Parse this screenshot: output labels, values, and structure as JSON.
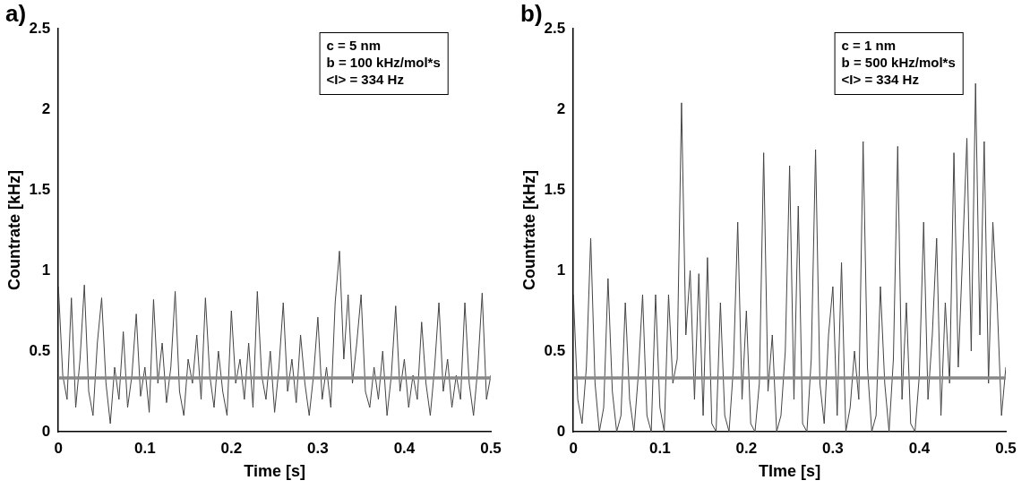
{
  "chart_data": [
    {
      "type": "line",
      "panel": "a)",
      "x_label": "Time [s]",
      "y_label": "Countrate [kHz]",
      "annotations": [
        "c = 5 nm",
        "b = 100 kHz/mol*s",
        "<I> = 334 Hz"
      ],
      "xlim": [
        0,
        0.5
      ],
      "xticks": [
        0,
        0.1,
        0.2,
        0.3,
        0.4,
        0.5
      ],
      "ylim": [
        0,
        2.5
      ],
      "yticks": [
        0,
        0.5,
        1,
        1.5,
        2,
        2.5
      ],
      "grid": false,
      "x": [
        0,
        0.005,
        0.01,
        0.015,
        0.02,
        0.025,
        0.03,
        0.035,
        0.04,
        0.045,
        0.05,
        0.055,
        0.06,
        0.065,
        0.07,
        0.075,
        0.08,
        0.085,
        0.09,
        0.095,
        0.1,
        0.105,
        0.11,
        0.115,
        0.12,
        0.125,
        0.13,
        0.135,
        0.14,
        0.145,
        0.15,
        0.155,
        0.16,
        0.165,
        0.17,
        0.175,
        0.18,
        0.185,
        0.19,
        0.195,
        0.2,
        0.205,
        0.21,
        0.215,
        0.22,
        0.225,
        0.23,
        0.235,
        0.24,
        0.245,
        0.25,
        0.255,
        0.26,
        0.265,
        0.27,
        0.275,
        0.28,
        0.285,
        0.29,
        0.295,
        0.3,
        0.305,
        0.31,
        0.315,
        0.32,
        0.325,
        0.33,
        0.335,
        0.34,
        0.345,
        0.35,
        0.355,
        0.36,
        0.365,
        0.37,
        0.375,
        0.38,
        0.385,
        0.39,
        0.395,
        0.4,
        0.405,
        0.41,
        0.415,
        0.42,
        0.425,
        0.43,
        0.435,
        0.44,
        0.445,
        0.45,
        0.455,
        0.46,
        0.465,
        0.47,
        0.475,
        0.48,
        0.485,
        0.49,
        0.495,
        0.5
      ],
      "series": [
        {
          "color": "#444444",
          "values": [
            0.9,
            0.35,
            0.2,
            0.83,
            0.15,
            0.45,
            0.91,
            0.25,
            0.1,
            0.55,
            0.83,
            0.3,
            0.05,
            0.4,
            0.2,
            0.62,
            0.15,
            0.35,
            0.73,
            0.22,
            0.4,
            0.12,
            0.82,
            0.3,
            0.55,
            0.18,
            0.4,
            0.87,
            0.25,
            0.1,
            0.45,
            0.3,
            0.6,
            0.2,
            0.83,
            0.35,
            0.15,
            0.5,
            0.25,
            0.1,
            0.75,
            0.3,
            0.45,
            0.2,
            0.55,
            0.15,
            0.87,
            0.35,
            0.2,
            0.5,
            0.12,
            0.4,
            0.8,
            0.25,
            0.45,
            0.18,
            0.6,
            0.3,
            0.1,
            0.35,
            0.71,
            0.2,
            0.4,
            0.15,
            0.8,
            1.12,
            0.45,
            0.85,
            0.3,
            0.55,
            0.85,
            0.25,
            0.15,
            0.4,
            0.2,
            0.5,
            0.1,
            0.35,
            0.78,
            0.25,
            0.45,
            0.15,
            0.35,
            0.2,
            0.68,
            0.3,
            0.1,
            0.4,
            0.8,
            0.25,
            0.45,
            0.15,
            0.35,
            0.2,
            0.8,
            0.3,
            0.1,
            0.4,
            0.86,
            0.2,
            0.35
          ]
        },
        {
          "color": "#888888",
          "x": [
            0,
            0.5
          ],
          "values": [
            0.334,
            0.334
          ]
        }
      ]
    },
    {
      "type": "line",
      "panel": "b)",
      "x_label": "TIme [s]",
      "y_label": "Countrate [kHz]",
      "annotations": [
        "c = 1 nm",
        "b = 500 kHz/mol*s",
        "<I> = 334 Hz"
      ],
      "xlim": [
        0,
        0.5
      ],
      "xticks": [
        0,
        0.1,
        0.2,
        0.3,
        0.4,
        0.5
      ],
      "ylim": [
        0,
        2.5
      ],
      "yticks": [
        0,
        0.5,
        1,
        1.5,
        2,
        2.5
      ],
      "grid": false,
      "x": [
        0,
        0.005,
        0.01,
        0.015,
        0.02,
        0.025,
        0.03,
        0.035,
        0.04,
        0.045,
        0.05,
        0.055,
        0.06,
        0.065,
        0.07,
        0.075,
        0.08,
        0.085,
        0.09,
        0.095,
        0.1,
        0.105,
        0.11,
        0.115,
        0.12,
        0.125,
        0.13,
        0.135,
        0.14,
        0.145,
        0.15,
        0.155,
        0.16,
        0.165,
        0.17,
        0.175,
        0.18,
        0.185,
        0.19,
        0.195,
        0.2,
        0.205,
        0.21,
        0.215,
        0.22,
        0.225,
        0.23,
        0.235,
        0.24,
        0.245,
        0.25,
        0.255,
        0.26,
        0.265,
        0.27,
        0.275,
        0.28,
        0.285,
        0.29,
        0.295,
        0.3,
        0.305,
        0.31,
        0.315,
        0.32,
        0.325,
        0.33,
        0.335,
        0.34,
        0.345,
        0.35,
        0.355,
        0.36,
        0.365,
        0.37,
        0.375,
        0.38,
        0.385,
        0.39,
        0.395,
        0.4,
        0.405,
        0.41,
        0.415,
        0.42,
        0.425,
        0.43,
        0.435,
        0.44,
        0.445,
        0.45,
        0.455,
        0.46,
        0.465,
        0.47,
        0.475,
        0.48,
        0.485,
        0.49,
        0.495,
        0.5
      ],
      "series": [
        {
          "color": "#444444",
          "values": [
            0.85,
            0.2,
            0.05,
            0.4,
            1.2,
            0.3,
            0.0,
            0.15,
            0.95,
            0.25,
            0.0,
            0.1,
            0.8,
            0.2,
            0.0,
            0.35,
            0.85,
            0.1,
            0.0,
            0.85,
            0.15,
            0.0,
            0.85,
            0.3,
            0.45,
            2.04,
            0.6,
            1.0,
            0.2,
            0.98,
            0.1,
            1.08,
            0.05,
            0.0,
            0.8,
            0.1,
            0.0,
            0.4,
            1.3,
            0.2,
            0.75,
            0.05,
            0.0,
            0.3,
            1.73,
            0.25,
            0.6,
            0.0,
            0.1,
            0.5,
            1.65,
            0.2,
            1.4,
            0.05,
            0.0,
            0.45,
            1.75,
            0.3,
            0.05,
            0.6,
            0.9,
            0.1,
            1.05,
            0.0,
            0.15,
            0.5,
            0.2,
            1.8,
            0.4,
            0.0,
            0.1,
            0.9,
            0.3,
            0.0,
            0.45,
            1.77,
            0.2,
            0.8,
            0.05,
            0.0,
            0.35,
            1.3,
            0.2,
            0.6,
            1.2,
            0.1,
            0.8,
            0.3,
            1.73,
            0.4,
            1.1,
            1.82,
            0.5,
            2.16,
            0.6,
            1.8,
            0.3,
            1.3,
            0.8,
            0.1,
            0.4
          ]
        },
        {
          "color": "#888888",
          "x": [
            0,
            0.5
          ],
          "values": [
            0.334,
            0.334
          ]
        }
      ]
    }
  ]
}
